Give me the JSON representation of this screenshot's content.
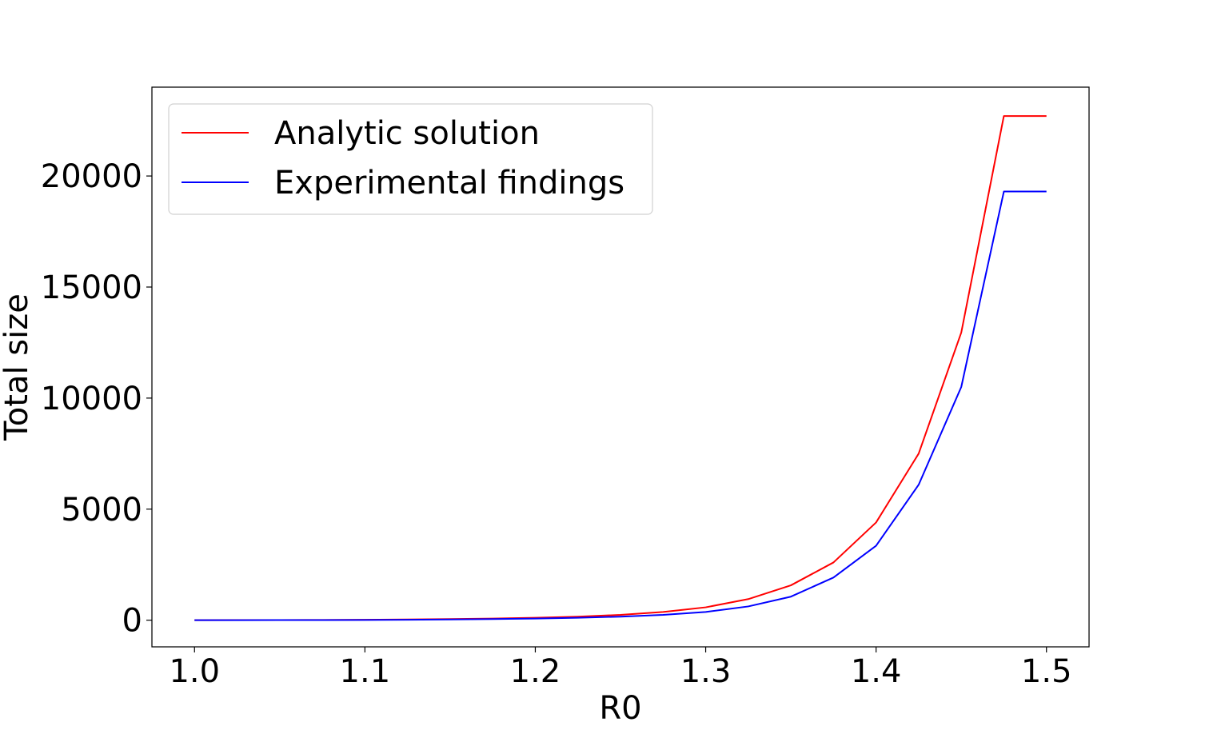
{
  "chart_data": {
    "type": "line",
    "title": "",
    "xlabel": "R0",
    "ylabel": "Total size",
    "xlim": [
      0.975,
      1.525
    ],
    "ylim": [
      -1200,
      24000
    ],
    "xticks": [
      1.0,
      1.1,
      1.2,
      1.3,
      1.4,
      1.5
    ],
    "xtick_labels": [
      "1.0",
      "1.1",
      "1.2",
      "1.3",
      "1.4",
      "1.5"
    ],
    "yticks": [
      0,
      5000,
      10000,
      15000,
      20000
    ],
    "ytick_labels": [
      "0",
      "5000",
      "10000",
      "15000",
      "20000"
    ],
    "grid": false,
    "legend_position": "top-left",
    "x": [
      1.0,
      1.025,
      1.05,
      1.075,
      1.1,
      1.125,
      1.15,
      1.175,
      1.2,
      1.225,
      1.25,
      1.275,
      1.3,
      1.325,
      1.35,
      1.375,
      1.4,
      1.425,
      1.45,
      1.475,
      1.5
    ],
    "series": [
      {
        "name": "Analytic solution",
        "color": "#ff0000",
        "values": [
          2,
          4,
          7,
          12,
          20,
          32,
          50,
          75,
          110,
          160,
          240,
          370,
          580,
          950,
          1570,
          2600,
          4400,
          7500,
          12950,
          22700,
          22700
        ]
      },
      {
        "name": "Experimental findings",
        "color": "#0000ff",
        "values": [
          1,
          2,
          4,
          7,
          12,
          20,
          32,
          50,
          75,
          110,
          160,
          240,
          370,
          620,
          1060,
          1920,
          3350,
          6100,
          10500,
          19300,
          19300
        ]
      }
    ]
  }
}
